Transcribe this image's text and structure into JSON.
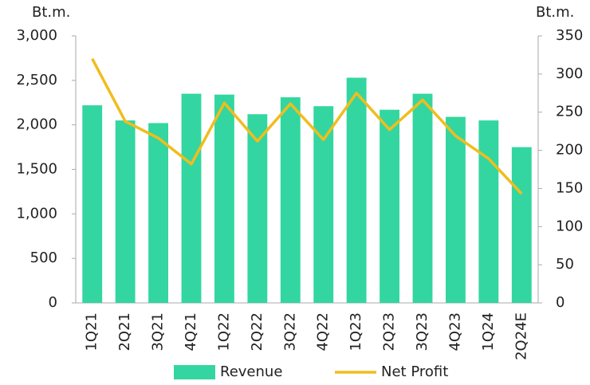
{
  "chart_data": {
    "type": "bar",
    "y_label": "Bt.m.",
    "y2_label": "Bt.m.",
    "categories": [
      "1Q21",
      "2Q21",
      "3Q21",
      "4Q21",
      "1Q22",
      "2Q22",
      "3Q22",
      "4Q22",
      "1Q23",
      "2Q23",
      "3Q23",
      "4Q23",
      "1Q24",
      "2Q24E"
    ],
    "series": [
      {
        "name": "Revenue",
        "type": "bar",
        "color": "#33d6a0",
        "axis": "y",
        "values": [
          2220,
          2050,
          2020,
          2350,
          2340,
          2120,
          2310,
          2210,
          2530,
          2170,
          2350,
          2090,
          2050,
          1750
        ]
      },
      {
        "name": "Net Profit",
        "type": "line",
        "color": "#f0bd1e",
        "axis": "y2",
        "values": [
          320,
          238,
          216,
          182,
          262,
          212,
          261,
          214,
          275,
          227,
          266,
          219,
          189,
          143
        ]
      }
    ],
    "ylim": [
      0,
      3000
    ],
    "yticks": [
      0,
      500,
      {
        "value": 1000,
        "label": "1,000"
      },
      {
        "value": 1500,
        "label": "1,500"
      },
      {
        "value": 2000,
        "label": "2,000"
      },
      {
        "value": 2500,
        "label": "2,500"
      },
      {
        "value": 3000,
        "label": "3,000"
      }
    ],
    "y2lim": [
      0,
      350
    ],
    "y2ticks": [
      0,
      50,
      100,
      150,
      200,
      250,
      300,
      350
    ],
    "legend": "bottom",
    "grid": false
  }
}
